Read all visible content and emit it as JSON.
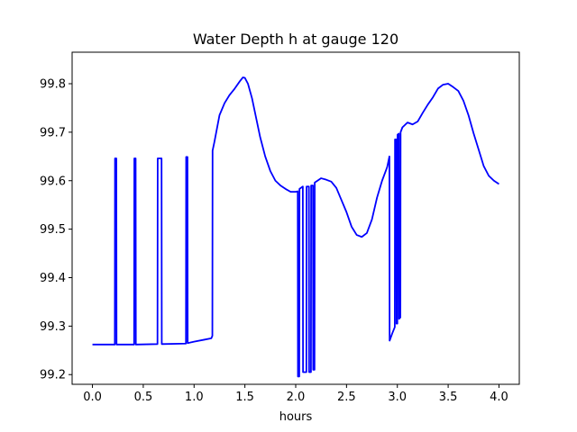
{
  "chart_data": {
    "type": "line",
    "title": "Water Depth h at gauge 120",
    "xlabel": "hours",
    "ylabel": "",
    "xlim": [
      -0.2,
      4.2
    ],
    "ylim": [
      99.18,
      99.865
    ],
    "x_ticks": [
      "0.0",
      "0.5",
      "1.0",
      "1.5",
      "2.0",
      "2.5",
      "3.0",
      "3.5",
      "4.0"
    ],
    "y_ticks": [
      "99.2",
      "99.3",
      "99.4",
      "99.5",
      "99.6",
      "99.7",
      "99.8"
    ],
    "grid": false,
    "legend": "none",
    "series": [
      {
        "color": "#0000ff",
        "points": [
          [
            0.0,
            99.262
          ],
          [
            0.22,
            99.262
          ],
          [
            0.222,
            99.646
          ],
          [
            0.235,
            99.646
          ],
          [
            0.237,
            99.262
          ],
          [
            0.41,
            99.262
          ],
          [
            0.412,
            99.646
          ],
          [
            0.425,
            99.646
          ],
          [
            0.427,
            99.262
          ],
          [
            0.64,
            99.263
          ],
          [
            0.642,
            99.646
          ],
          [
            0.68,
            99.646
          ],
          [
            0.682,
            99.263
          ],
          [
            0.92,
            99.264
          ],
          [
            0.922,
            99.649
          ],
          [
            0.935,
            99.649
          ],
          [
            0.937,
            99.265
          ],
          [
            1.0,
            99.268
          ],
          [
            1.1,
            99.272
          ],
          [
            1.17,
            99.275
          ],
          [
            1.18,
            99.28
          ],
          [
            1.182,
            99.662
          ],
          [
            1.2,
            99.68
          ],
          [
            1.25,
            99.735
          ],
          [
            1.3,
            99.76
          ],
          [
            1.35,
            99.777
          ],
          [
            1.4,
            99.79
          ],
          [
            1.45,
            99.805
          ],
          [
            1.48,
            99.813
          ],
          [
            1.5,
            99.812
          ],
          [
            1.53,
            99.8
          ],
          [
            1.57,
            99.77
          ],
          [
            1.6,
            99.74
          ],
          [
            1.65,
            99.69
          ],
          [
            1.7,
            99.65
          ],
          [
            1.75,
            99.62
          ],
          [
            1.8,
            99.6
          ],
          [
            1.85,
            99.59
          ],
          [
            1.9,
            99.583
          ],
          [
            1.95,
            99.577
          ],
          [
            2.0,
            99.577
          ],
          [
            2.02,
            99.578
          ],
          [
            2.022,
            99.196
          ],
          [
            2.035,
            99.196
          ],
          [
            2.037,
            99.583
          ],
          [
            2.07,
            99.588
          ],
          [
            2.072,
            99.205
          ],
          [
            2.105,
            99.205
          ],
          [
            2.107,
            99.588
          ],
          [
            2.13,
            99.588
          ],
          [
            2.132,
            99.205
          ],
          [
            2.15,
            99.205
          ],
          [
            2.152,
            99.59
          ],
          [
            2.17,
            99.59
          ],
          [
            2.172,
            99.21
          ],
          [
            2.185,
            99.21
          ],
          [
            2.187,
            99.596
          ],
          [
            2.2,
            99.598
          ],
          [
            2.25,
            99.605
          ],
          [
            2.3,
            99.602
          ],
          [
            2.35,
            99.598
          ],
          [
            2.4,
            99.585
          ],
          [
            2.45,
            99.56
          ],
          [
            2.5,
            99.535
          ],
          [
            2.55,
            99.505
          ],
          [
            2.6,
            99.488
          ],
          [
            2.65,
            99.484
          ],
          [
            2.7,
            99.492
          ],
          [
            2.75,
            99.52
          ],
          [
            2.8,
            99.565
          ],
          [
            2.85,
            99.6
          ],
          [
            2.9,
            99.628
          ],
          [
            2.922,
            99.65
          ],
          [
            2.924,
            99.27
          ],
          [
            2.95,
            99.285
          ],
          [
            2.975,
            99.298
          ],
          [
            2.977,
            99.685
          ],
          [
            2.99,
            99.685
          ],
          [
            2.992,
            99.305
          ],
          [
            3.0,
            99.305
          ],
          [
            3.002,
            99.695
          ],
          [
            3.015,
            99.697
          ],
          [
            3.017,
            99.315
          ],
          [
            3.03,
            99.318
          ],
          [
            3.032,
            99.7
          ],
          [
            3.05,
            99.71
          ],
          [
            3.1,
            99.72
          ],
          [
            3.15,
            99.716
          ],
          [
            3.2,
            99.722
          ],
          [
            3.25,
            99.74
          ],
          [
            3.3,
            99.757
          ],
          [
            3.35,
            99.772
          ],
          [
            3.4,
            99.79
          ],
          [
            3.45,
            99.798
          ],
          [
            3.5,
            99.8
          ],
          [
            3.55,
            99.793
          ],
          [
            3.6,
            99.785
          ],
          [
            3.65,
            99.765
          ],
          [
            3.7,
            99.735
          ],
          [
            3.75,
            99.698
          ],
          [
            3.8,
            99.664
          ],
          [
            3.85,
            99.63
          ],
          [
            3.9,
            99.61
          ],
          [
            3.95,
            99.6
          ],
          [
            4.0,
            99.593
          ]
        ]
      }
    ]
  }
}
